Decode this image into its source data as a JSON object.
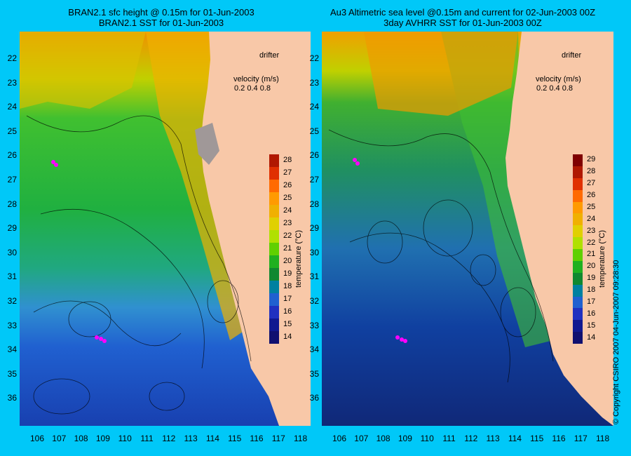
{
  "left_panel": {
    "title_line1": "BRAN2.1 sfc height @ 0.15m for 01-Jun-2003",
    "title_line2": "BRAN2.1 SST for 01-Jun-2003"
  },
  "right_panel": {
    "title_line1": "Au3 Altimetric sea level  @0.15m and current for 02-Jun-2003 00Z",
    "title_line2": "3day AVHRR SST for 01-Jun-2003 00Z"
  },
  "legend": {
    "drifter": "drifter",
    "velocity_title": "velocity (m/s)",
    "velocity_values": [
      "0.2",
      "0.4",
      "0.8"
    ]
  },
  "colorbar": {
    "title": "temperature (°C)",
    "ticks": [
      "29",
      "28",
      "27",
      "26",
      "25",
      "24",
      "23",
      "22",
      "21",
      "20",
      "19",
      "18",
      "17",
      "16",
      "15",
      "14"
    ],
    "left_ticks": [
      "28",
      "27",
      "26",
      "25",
      "24",
      "23",
      "22",
      "21",
      "20",
      "19",
      "18",
      "17",
      "16",
      "15",
      "14"
    ],
    "colors": [
      "#800000",
      "#b01800",
      "#e03000",
      "#ff6a00",
      "#ff9a00",
      "#f0b000",
      "#e0d000",
      "#b0e000",
      "#60d000",
      "#20b020",
      "#108830",
      "#0080a0",
      "#2060d0",
      "#2030c0",
      "#101890",
      "#101070"
    ]
  },
  "axes": {
    "lat_ticks": [
      "22",
      "23",
      "24",
      "25",
      "26",
      "27",
      "28",
      "29",
      "30",
      "31",
      "32",
      "33",
      "34",
      "35",
      "36"
    ],
    "lon_ticks": [
      "106",
      "107",
      "108",
      "109",
      "110",
      "111",
      "112",
      "113",
      "114",
      "115",
      "116",
      "117",
      "118"
    ]
  },
  "copyright": "© Copyright CSIRO 2007    04-Jun-2007 09:28:30",
  "colors": {
    "background": "#00c8f8",
    "land": "#f8c8a8",
    "drifter": "#ff00ff"
  }
}
